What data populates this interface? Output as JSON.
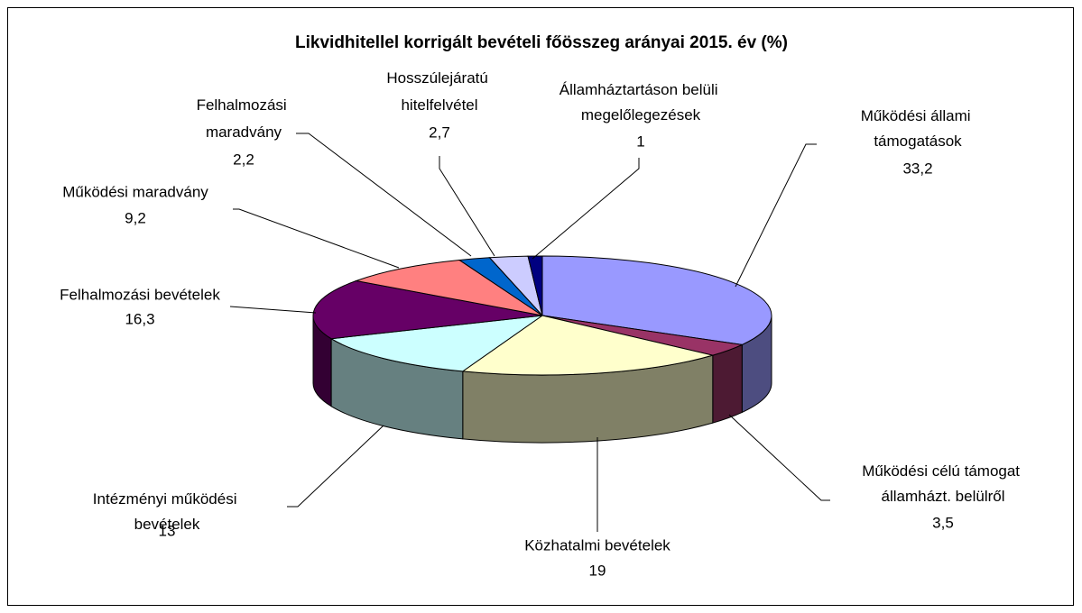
{
  "chart_data": {
    "type": "pie3d",
    "title": "Likvidhitellel korrigált bevételi főösszeg arányai 2015. év (%)",
    "categories": [
      "Működési állami támogatások",
      "Működési célú támogat államházt. belülről",
      "Közhatalmi bevételek",
      "Intézményi működési bevételek",
      "Felhalmozási bevételek",
      "Működési maradvány",
      "Felhalmozási maradvány",
      "Hosszúlejáratú hitelfelvétel",
      "Államháztartáson belüli megelőlegezések"
    ],
    "values": [
      33.2,
      3.5,
      19,
      13,
      16.3,
      9.2,
      2.2,
      2.7,
      1
    ],
    "value_labels": [
      "33,2",
      "3,5",
      "19",
      "13",
      "16,3",
      "9,2",
      "2,2",
      "2,7",
      "1"
    ],
    "colors": [
      "#9999ff",
      "#993366",
      "#ffffcc",
      "#ccffff",
      "#660066",
      "#ff8080",
      "#0066cc",
      "#ccccff",
      "#000080"
    ]
  }
}
